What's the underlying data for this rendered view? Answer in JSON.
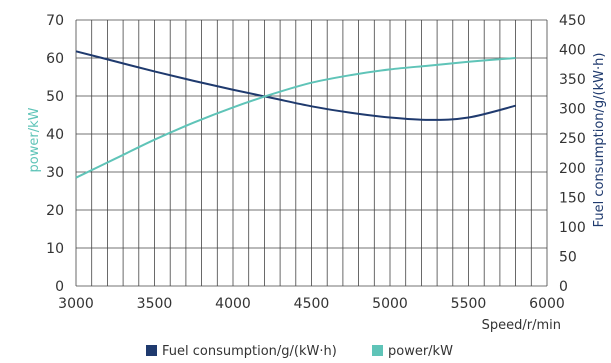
{
  "chart_data": {
    "type": "line",
    "x": [
      3000,
      3250,
      3500,
      3750,
      4000,
      4250,
      4500,
      4750,
      5000,
      5250,
      5500,
      5800
    ],
    "xlabel": "Speed/r/min",
    "xlim": [
      3000,
      6000
    ],
    "xticks": [
      "3000",
      "3500",
      "4000",
      "4500",
      "5000",
      "5500",
      "6000"
    ],
    "x_gridlines_step": 100,
    "grid": true,
    "legend_position": "bottom-center",
    "y_left": {
      "label": "power/kW",
      "lim": [
        0,
        70
      ],
      "ticks": [
        "0",
        "10",
        "20",
        "30",
        "40",
        "50",
        "60",
        "70"
      ],
      "color": "#5fc4b8"
    },
    "y_right": {
      "label": "Fuel consumption/g/(kW·h)",
      "lim": [
        0,
        450
      ],
      "ticks": [
        "0",
        "50",
        "100",
        "150",
        "200",
        "250",
        "300",
        "350",
        "400",
        "450"
      ],
      "color": "#1f3a6e"
    },
    "series": [
      {
        "name": "Fuel consumption/g/(kW·h)",
        "axis": "right",
        "color": "#1f3a6e",
        "values": [
          397,
          380,
          363,
          347,
          332,
          318,
          304,
          293,
          285,
          281,
          285,
          305
        ]
      },
      {
        "name": "power/kW",
        "axis": "left",
        "color": "#5fc4b8",
        "values": [
          28.5,
          33.5,
          38.5,
          43,
          47,
          50.5,
          53.5,
          55.5,
          57,
          58,
          59,
          60
        ]
      }
    ]
  }
}
